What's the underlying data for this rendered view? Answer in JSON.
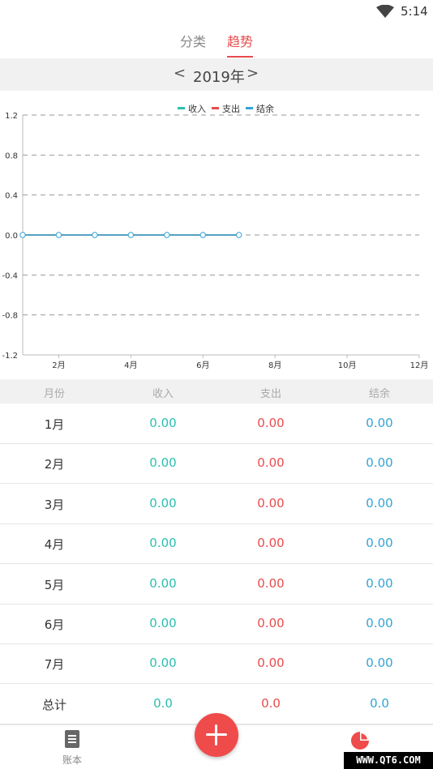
{
  "status_bar": {
    "time": "5:14"
  },
  "tabs": [
    {
      "label": "分类",
      "active": false
    },
    {
      "label": "趋势",
      "active": true
    }
  ],
  "year_selector": {
    "prev": "<",
    "year": "2019年",
    "next": ">"
  },
  "chart_data": {
    "type": "line",
    "x_ticks": [
      "2月",
      "4月",
      "6月",
      "8月",
      "10月",
      "12月"
    ],
    "y_ticks": [
      "1.2",
      "0.8",
      "0.4",
      "0.0",
      "-0.4",
      "-0.8",
      "-1.2"
    ],
    "ylim": [
      -1.2,
      1.2
    ],
    "xlim": [
      1,
      12
    ],
    "x": [
      1,
      2,
      3,
      4,
      5,
      6,
      7
    ],
    "legend": [
      "收入",
      "支出",
      "结余"
    ],
    "legend_position": "top-center",
    "colors": {
      "income": "#2bbfb0",
      "expense": "#e84c4c",
      "balance": "#33a4d6"
    },
    "series": [
      {
        "name": "收入",
        "values": [
          0,
          0,
          0,
          0,
          0,
          0,
          0
        ]
      },
      {
        "name": "支出",
        "values": [
          0,
          0,
          0,
          0,
          0,
          0,
          0
        ]
      },
      {
        "name": "结余",
        "values": [
          0,
          0,
          0,
          0,
          0,
          0,
          0
        ]
      }
    ],
    "grid": "horizontal-dashed"
  },
  "table": {
    "headers": [
      "月份",
      "收入",
      "支出",
      "结余"
    ],
    "rows": [
      {
        "month": "1月",
        "income": "0.00",
        "expense": "0.00",
        "balance": "0.00"
      },
      {
        "month": "2月",
        "income": "0.00",
        "expense": "0.00",
        "balance": "0.00"
      },
      {
        "month": "3月",
        "income": "0.00",
        "expense": "0.00",
        "balance": "0.00"
      },
      {
        "month": "4月",
        "income": "0.00",
        "expense": "0.00",
        "balance": "0.00"
      },
      {
        "month": "5月",
        "income": "0.00",
        "expense": "0.00",
        "balance": "0.00"
      },
      {
        "month": "6月",
        "income": "0.00",
        "expense": "0.00",
        "balance": "0.00"
      },
      {
        "month": "7月",
        "income": "0.00",
        "expense": "0.00",
        "balance": "0.00"
      }
    ],
    "total": {
      "month": "总计",
      "income": "0.0",
      "expense": "0.0",
      "balance": "0.0"
    }
  },
  "bottom_nav": {
    "book_label": "账本",
    "book_icon": "document-icon",
    "add_icon": "plus-icon",
    "chart_icon": "pie-chart-icon"
  },
  "watermark": "WWW.QT6.COM"
}
